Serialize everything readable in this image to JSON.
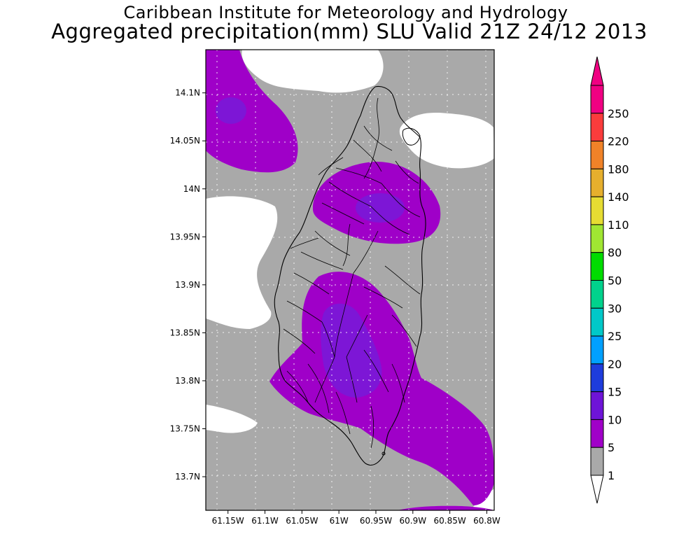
{
  "header": {
    "line1": "Caribbean Institute for Meteorology and Hydrology",
    "line2": "Aggregated precipitation(mm) SLU Valid 21Z 24/12 2013"
  },
  "map": {
    "lon_range": [
      -61.18,
      -60.79
    ],
    "lat_range": [
      13.665,
      14.145
    ],
    "x_ticks": [
      {
        "value": -61.15,
        "label": "61.15W"
      },
      {
        "value": -61.1,
        "label": "61.1W"
      },
      {
        "value": -61.05,
        "label": "61.05W"
      },
      {
        "value": -61.0,
        "label": "61W"
      },
      {
        "value": -60.95,
        "label": "60.95W"
      },
      {
        "value": -60.9,
        "label": "60.9W"
      },
      {
        "value": -60.85,
        "label": "60.85W"
      },
      {
        "value": -60.8,
        "label": "60.8W"
      }
    ],
    "y_ticks": [
      {
        "value": 14.1,
        "label": "14.1N"
      },
      {
        "value": 14.05,
        "label": "14.05N"
      },
      {
        "value": 14.0,
        "label": "14N"
      },
      {
        "value": 13.95,
        "label": "13.95N"
      },
      {
        "value": 13.9,
        "label": "13.9N"
      },
      {
        "value": 13.85,
        "label": "13.85N"
      },
      {
        "value": 13.8,
        "label": "13.8N"
      },
      {
        "value": 13.75,
        "label": "13.75N"
      },
      {
        "value": 13.7,
        "label": "13.7N"
      }
    ],
    "colors": {
      "background_1_5": "#a9a9a9",
      "band_5_10": "#9f00c8",
      "band_10_15": "#7d16d6",
      "below_1": "#ffffff"
    }
  },
  "colorbar": {
    "labels": [
      "1",
      "5",
      "10",
      "15",
      "20",
      "25",
      "30",
      "50",
      "80",
      "110",
      "140",
      "180",
      "220",
      "250"
    ],
    "colors": [
      "#a9a9a9",
      "#a000c8",
      "#6e14d7",
      "#1e3cdc",
      "#00a0ff",
      "#00c8c8",
      "#00d28c",
      "#00dc00",
      "#a0e632",
      "#e6dc32",
      "#e6af2d",
      "#f08228",
      "#fa3c3c",
      "#f00082"
    ],
    "bottom_color": "#ffffff"
  }
}
